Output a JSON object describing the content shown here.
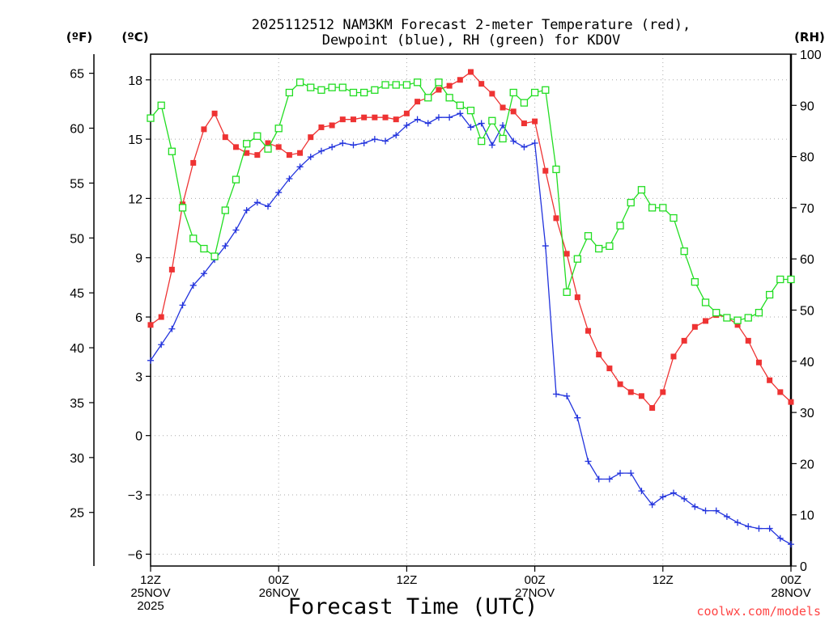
{
  "chart_data": {
    "type": "line",
    "title_lines": [
      "2025112512 NAM3KM Forecast 2-meter Temperature (red),",
      "Dewpoint (blue), RH (green) for KDOV"
    ],
    "xlabel": "Forecast Time (UTC)",
    "credit": "coolwx.com/models",
    "credit_color": "#ff4444",
    "units": {
      "fahrenheit": "(ºF)",
      "celsius": "(ºC)",
      "rh": "(RH)"
    },
    "x_range_hours": [
      0,
      60
    ],
    "x_ticks": [
      {
        "hour": 0,
        "lines": [
          "12Z",
          "25NOV",
          "2025"
        ]
      },
      {
        "hour": 12,
        "lines": [
          "00Z",
          "26NOV"
        ]
      },
      {
        "hour": 24,
        "lines": [
          "12Z"
        ]
      },
      {
        "hour": 36,
        "lines": [
          "00Z",
          "27NOV"
        ]
      },
      {
        "hour": 48,
        "lines": [
          "12Z"
        ]
      },
      {
        "hour": 60,
        "lines": [
          "00Z",
          "28NOV"
        ]
      }
    ],
    "celsius_axis": {
      "range": [
        -6.6,
        19.3
      ],
      "ticks": [
        "18",
        "15",
        "12",
        "9",
        "6",
        "3",
        "0",
        "−3",
        "−6"
      ],
      "tick_values": [
        18,
        15,
        12,
        9,
        6,
        3,
        0,
        -3,
        -6
      ]
    },
    "fahrenheit_axis": {
      "ticks": [
        "65",
        "60",
        "55",
        "50",
        "45",
        "40",
        "35",
        "30",
        "25"
      ],
      "tick_values": [
        65,
        60,
        55,
        50,
        45,
        40,
        35,
        30,
        25
      ]
    },
    "rh_axis": {
      "range": [
        0,
        100
      ],
      "ticks": [
        "100",
        "90",
        "80",
        "70",
        "60",
        "50",
        "40",
        "30",
        "20",
        "10",
        "0"
      ],
      "tick_values": [
        100,
        90,
        80,
        70,
        60,
        50,
        40,
        30,
        20,
        10,
        0
      ]
    },
    "series": [
      {
        "name": "2-meter Temperature",
        "unit": "C",
        "color": "#ee3333",
        "marker": "filled-square",
        "x_start": 0,
        "x_step": 1,
        "values": [
          5.6,
          6.0,
          8.4,
          11.7,
          13.8,
          15.5,
          16.3,
          15.1,
          14.6,
          14.3,
          14.2,
          14.8,
          14.6,
          14.2,
          14.3,
          15.1,
          15.6,
          15.7,
          16.0,
          16.0,
          16.1,
          16.1,
          16.1,
          16.0,
          16.3,
          16.9,
          17.1,
          17.5,
          17.7,
          18.0,
          18.4,
          17.8,
          17.3,
          16.6,
          16.4,
          15.8,
          15.9,
          13.4,
          11.0,
          9.2,
          7.0,
          5.3,
          4.1,
          3.4,
          2.6,
          2.2,
          2.0,
          1.4,
          2.2,
          4.0,
          4.8,
          5.5,
          5.8,
          6.1,
          6.0,
          5.6,
          4.8,
          3.7,
          2.8,
          2.2,
          1.7
        ]
      },
      {
        "name": "Dewpoint",
        "unit": "C",
        "color": "#2233dd",
        "marker": "plus",
        "x_start": 0,
        "x_step": 1,
        "values": [
          3.8,
          4.6,
          5.4,
          6.6,
          7.6,
          8.2,
          8.9,
          9.6,
          10.4,
          11.4,
          11.8,
          11.6,
          12.3,
          13.0,
          13.6,
          14.1,
          14.4,
          14.6,
          14.8,
          14.7,
          14.8,
          15.0,
          14.9,
          15.2,
          15.7,
          16.0,
          15.8,
          16.1,
          16.1,
          16.3,
          15.6,
          15.8,
          14.7,
          15.7,
          14.9,
          14.6,
          14.8,
          9.6,
          2.1,
          2.0,
          0.9,
          -1.3,
          -2.2,
          -2.2,
          -1.9,
          -1.9,
          -2.8,
          -3.5,
          -3.1,
          -2.9,
          -3.2,
          -3.6,
          -3.8,
          -3.8,
          -4.1,
          -4.4,
          -4.6,
          -4.7,
          -4.7,
          -5.2,
          -5.5
        ]
      },
      {
        "name": "Relative Humidity",
        "unit": "%",
        "color": "#22dd22",
        "marker": "open-square",
        "x_start": 0,
        "x_step": 1,
        "values": [
          87.5,
          90,
          81,
          70,
          64,
          62,
          60.5,
          69.5,
          75.5,
          82.5,
          84,
          81.5,
          85.5,
          92.5,
          94.5,
          93.5,
          93,
          93.5,
          93.5,
          92.5,
          92.5,
          93,
          94,
          94,
          94,
          94.5,
          91.5,
          94.5,
          91.5,
          90,
          89,
          83,
          87,
          83.5,
          92.5,
          90.5,
          92.5,
          93,
          77.5,
          53.5,
          60,
          64.5,
          62,
          62.5,
          66.5,
          71,
          73.5,
          70,
          70,
          68,
          61.5,
          55.5,
          51.5,
          49.5,
          48.5,
          48,
          48.5,
          49.5,
          53,
          56,
          56
        ]
      }
    ]
  }
}
